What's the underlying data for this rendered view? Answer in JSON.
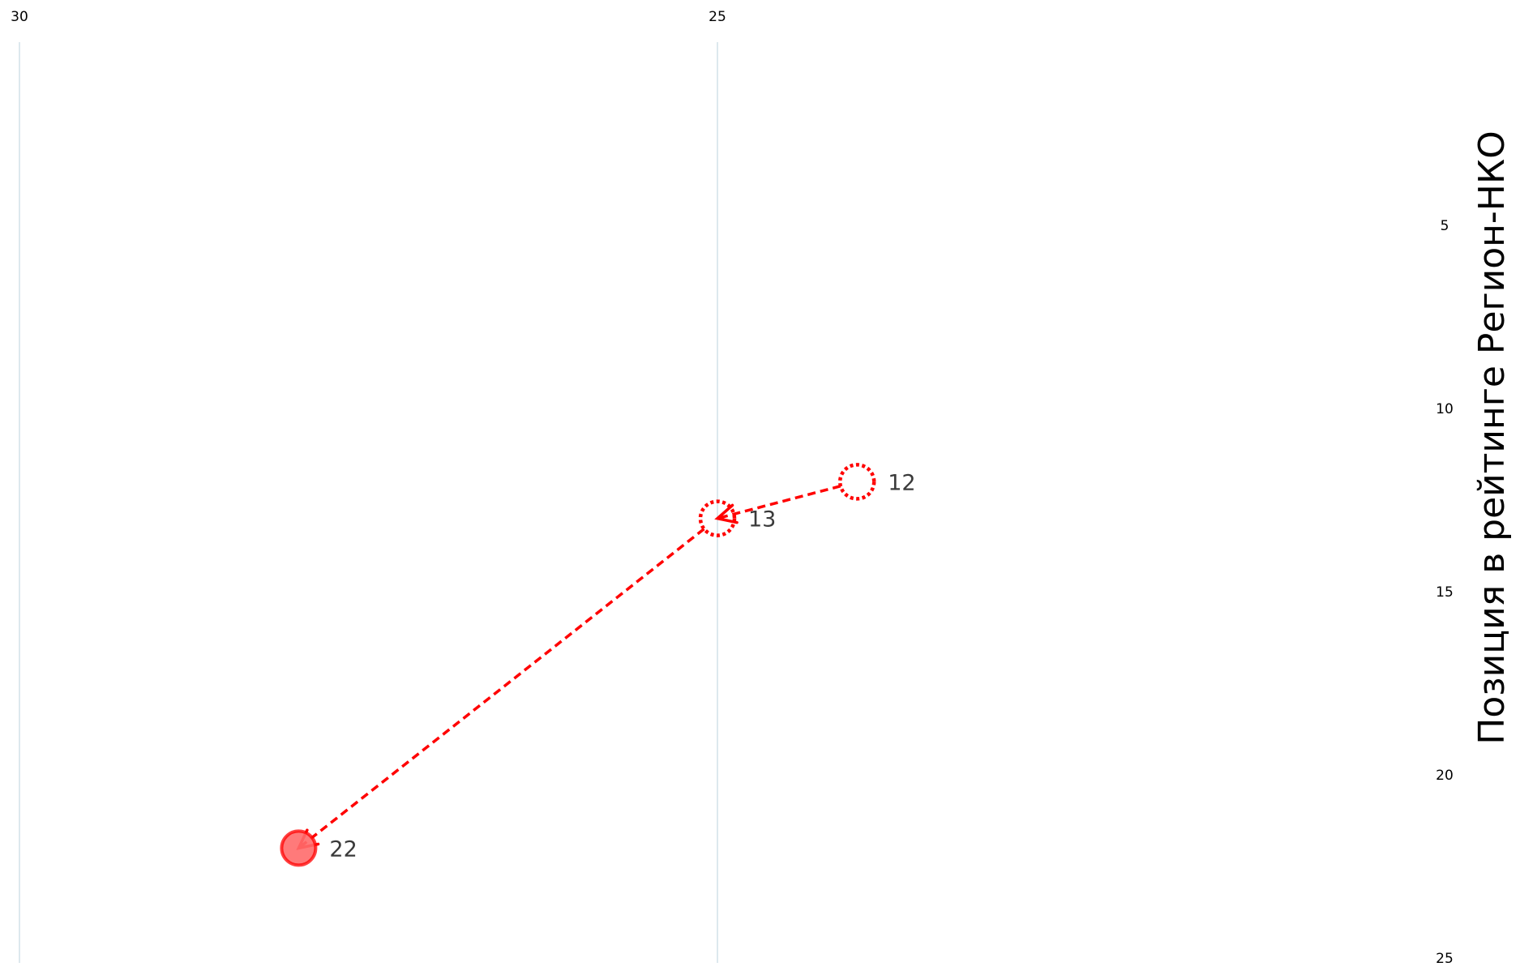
{
  "chart_data": {
    "type": "scatter",
    "title": "",
    "xlabel": "",
    "ylabel": "Позиция в рейтинге Регион-НКО",
    "xlim": [
      30,
      20
    ],
    "ylim": [
      0,
      25
    ],
    "x_reversed": true,
    "y_reversed": true,
    "x_ticks": [
      30,
      25
    ],
    "y_ticks": [
      5,
      10,
      15,
      20,
      25
    ],
    "grid": true,
    "legend": "none",
    "colors": {
      "series": "#ff0000",
      "point_fill": "#ff6b6b",
      "grid_line": "#c5d9e8",
      "x_grid_line": "#dde8ee",
      "label_text": "#3a3a3a"
    },
    "points": [
      {
        "x": 24.0,
        "y": 12,
        "label": "12",
        "style": "dotted-hollow"
      },
      {
        "x": 25.0,
        "y": 13,
        "label": "13",
        "style": "dotted-hollow"
      },
      {
        "x": 28.0,
        "y": 22,
        "label": "22",
        "style": "filled"
      }
    ],
    "arrows": [
      {
        "from": 0,
        "to": 1,
        "style": "dashed"
      },
      {
        "from": 1,
        "to": 2,
        "style": "dashed"
      }
    ]
  }
}
